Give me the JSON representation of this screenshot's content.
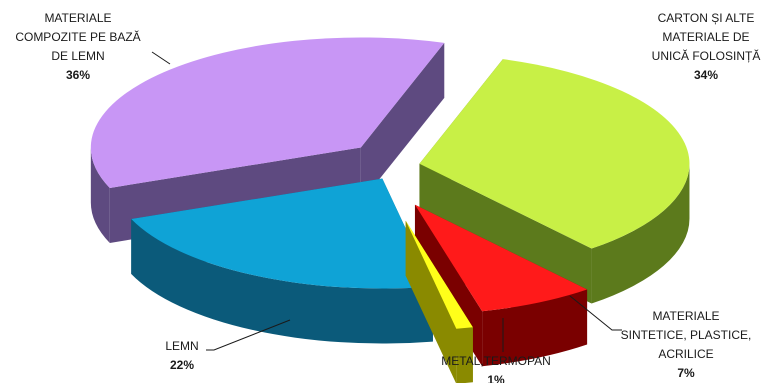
{
  "chart_data": {
    "type": "pie",
    "style": "3d-exploded",
    "legend": "none",
    "slices": [
      {
        "label_lines": [
          "CARTON ȘI ALTE",
          "MATERIALE DE",
          "UNICĂ FOLOSINȚĂ"
        ],
        "value": 34,
        "value_label": "34%",
        "color": "#c8f046",
        "side_color": "#5c7a1c"
      },
      {
        "label_lines": [
          "MATERIALE",
          "SINTETICE,  PLASTICE,",
          "ACRILICE"
        ],
        "value": 7,
        "value_label": "7%",
        "color": "#ff1a1a",
        "side_color": "#7a0000"
      },
      {
        "label_lines": [
          "METAL,TERMOPAN"
        ],
        "value": 1,
        "value_label": "1%",
        "color": "#ffff1a",
        "side_color": "#8a8a00"
      },
      {
        "label_lines": [
          "LEMN"
        ],
        "value": 22,
        "value_label": "22%",
        "color": "#0fa3d6",
        "side_color": "#0b5a7a"
      },
      {
        "label_lines": [
          "MATERIALE",
          "COMPOZITE PE BAZĂ",
          "DE LEMN"
        ],
        "value": 36,
        "value_label": "36%",
        "color": "#c896f5",
        "side_color": "#5e4a80"
      }
    ]
  }
}
